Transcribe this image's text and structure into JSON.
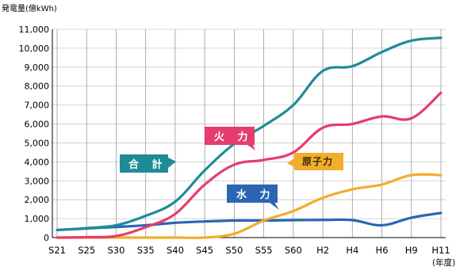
{
  "chart_data": {
    "type": "line",
    "ylabel": "発電量(億kWh)",
    "xlabel": "(年度)",
    "ylim": [
      0,
      11000
    ],
    "yticks": [
      "0",
      "1,000",
      "2,000",
      "3,000",
      "4,000",
      "5,000",
      "6,000",
      "7,000",
      "8,000",
      "9,000",
      "10,000",
      "11,000"
    ],
    "x": [
      "S21",
      "S25",
      "S30",
      "S35",
      "S40",
      "S45",
      "S50",
      "S55",
      "S60",
      "H2",
      "H4",
      "H6",
      "H9",
      "H11"
    ],
    "grid": true,
    "series": [
      {
        "name": "合 計",
        "color": "#1e8c96",
        "values": [
          400,
          500,
          650,
          1150,
          1900,
          3550,
          4950,
          5900,
          7000,
          8800,
          9050,
          9800,
          10400,
          10550
        ]
      },
      {
        "name": "火 力",
        "color": "#e63c6e",
        "values": [
          0,
          20,
          80,
          550,
          1250,
          2800,
          3850,
          4100,
          4500,
          5800,
          6000,
          6400,
          6300,
          7650
        ]
      },
      {
        "name": "原子力",
        "color": "#f2ad2e",
        "values": [
          0,
          0,
          0,
          0,
          0,
          0,
          200,
          900,
          1400,
          2100,
          2550,
          2800,
          3300,
          3300
        ]
      },
      {
        "name": "水 力",
        "color": "#2a66b4",
        "values": [
          400,
          480,
          560,
          650,
          780,
          850,
          900,
          900,
          920,
          930,
          920,
          650,
          1050,
          1300
        ]
      }
    ]
  },
  "callouts": {
    "total": "合 計",
    "thermal": "火 力",
    "nuclear": "原子力",
    "hydro": "水 力"
  }
}
